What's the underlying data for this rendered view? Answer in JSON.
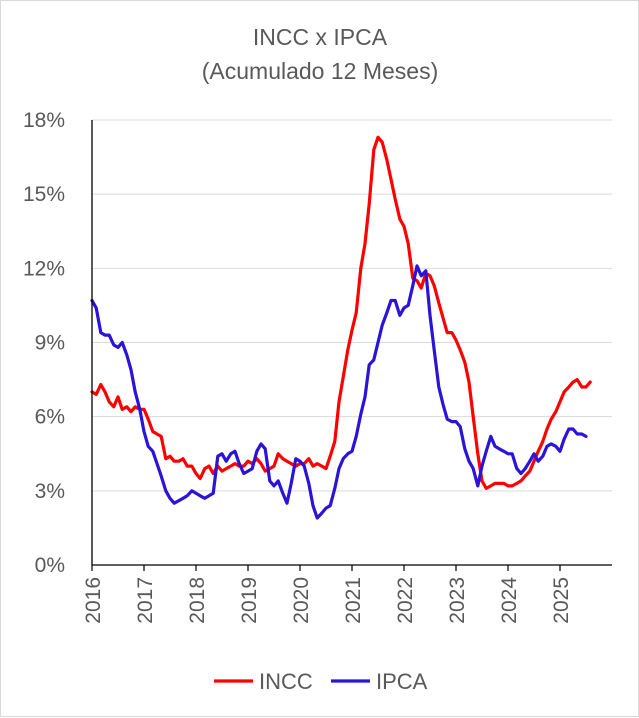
{
  "chart_data": {
    "type": "line",
    "title": "INCC x IPCA",
    "subtitle": "(Acumulado 12 Meses)",
    "xlabel": "",
    "ylabel": "",
    "x_range": [
      2016.0,
      2026.0
    ],
    "ylim": [
      0,
      18
    ],
    "y_ticks": [
      0,
      3,
      6,
      9,
      12,
      15,
      18
    ],
    "y_tick_labels": [
      "0%",
      "3%",
      "6%",
      "9%",
      "12%",
      "15%",
      "18%"
    ],
    "x_ticks": [
      2016,
      2017,
      2018,
      2019,
      2020,
      2021,
      2022,
      2023,
      2024,
      2025
    ],
    "x_tick_labels": [
      "2016",
      "2017",
      "2018",
      "2019",
      "2020",
      "2021",
      "2022",
      "2023",
      "2024",
      "2025"
    ],
    "grid": "horizontal",
    "legend_position": "bottom",
    "series": [
      {
        "name": "INCC",
        "color": "#ff0000",
        "points": [
          [
            2016.0,
            7.0
          ],
          [
            2016.08,
            6.9
          ],
          [
            2016.17,
            7.3
          ],
          [
            2016.25,
            7.0
          ],
          [
            2016.33,
            6.6
          ],
          [
            2016.42,
            6.4
          ],
          [
            2016.5,
            6.8
          ],
          [
            2016.58,
            6.3
          ],
          [
            2016.67,
            6.4
          ],
          [
            2016.75,
            6.2
          ],
          [
            2016.83,
            6.4
          ],
          [
            2016.92,
            6.3
          ],
          [
            2017.0,
            6.3
          ],
          [
            2017.08,
            5.9
          ],
          [
            2017.17,
            5.4
          ],
          [
            2017.25,
            5.3
          ],
          [
            2017.33,
            5.2
          ],
          [
            2017.42,
            4.3
          ],
          [
            2017.5,
            4.4
          ],
          [
            2017.58,
            4.2
          ],
          [
            2017.67,
            4.2
          ],
          [
            2017.75,
            4.3
          ],
          [
            2017.83,
            4.0
          ],
          [
            2017.92,
            4.0
          ],
          [
            2018.0,
            3.7
          ],
          [
            2018.08,
            3.5
          ],
          [
            2018.17,
            3.9
          ],
          [
            2018.25,
            4.0
          ],
          [
            2018.33,
            3.7
          ],
          [
            2018.42,
            4.0
          ],
          [
            2018.5,
            3.8
          ],
          [
            2018.58,
            3.9
          ],
          [
            2018.67,
            4.0
          ],
          [
            2018.75,
            4.1
          ],
          [
            2018.83,
            4.0
          ],
          [
            2018.92,
            4.0
          ],
          [
            2019.0,
            4.2
          ],
          [
            2019.08,
            4.1
          ],
          [
            2019.17,
            4.3
          ],
          [
            2019.25,
            4.1
          ],
          [
            2019.33,
            3.8
          ],
          [
            2019.42,
            3.9
          ],
          [
            2019.5,
            4.0
          ],
          [
            2019.58,
            4.5
          ],
          [
            2019.67,
            4.3
          ],
          [
            2019.75,
            4.2
          ],
          [
            2019.83,
            4.1
          ],
          [
            2019.92,
            4.0
          ],
          [
            2020.0,
            4.1
          ],
          [
            2020.08,
            4.1
          ],
          [
            2020.17,
            4.3
          ],
          [
            2020.25,
            4.0
          ],
          [
            2020.33,
            4.1
          ],
          [
            2020.42,
            4.0
          ],
          [
            2020.5,
            3.9
          ],
          [
            2020.58,
            4.4
          ],
          [
            2020.67,
            5.0
          ],
          [
            2020.75,
            6.6
          ],
          [
            2020.83,
            7.6
          ],
          [
            2020.92,
            8.7
          ],
          [
            2021.0,
            9.5
          ],
          [
            2021.08,
            10.2
          ],
          [
            2021.17,
            12.0
          ],
          [
            2021.25,
            13.0
          ],
          [
            2021.33,
            14.6
          ],
          [
            2021.42,
            16.8
          ],
          [
            2021.5,
            17.3
          ],
          [
            2021.58,
            17.1
          ],
          [
            2021.67,
            16.4
          ],
          [
            2021.75,
            15.6
          ],
          [
            2021.83,
            14.8
          ],
          [
            2021.92,
            14.0
          ],
          [
            2022.0,
            13.7
          ],
          [
            2022.08,
            13.0
          ],
          [
            2022.17,
            11.6
          ],
          [
            2022.25,
            11.5
          ],
          [
            2022.33,
            11.2
          ],
          [
            2022.42,
            11.8
          ],
          [
            2022.5,
            11.7
          ],
          [
            2022.58,
            11.3
          ],
          [
            2022.67,
            10.6
          ],
          [
            2022.75,
            10.0
          ],
          [
            2022.83,
            9.4
          ],
          [
            2022.92,
            9.4
          ],
          [
            2023.0,
            9.1
          ],
          [
            2023.08,
            8.7
          ],
          [
            2023.17,
            8.2
          ],
          [
            2023.25,
            7.4
          ],
          [
            2023.33,
            6.0
          ],
          [
            2023.42,
            4.5
          ],
          [
            2023.5,
            3.4
          ],
          [
            2023.58,
            3.1
          ],
          [
            2023.67,
            3.2
          ],
          [
            2023.75,
            3.3
          ],
          [
            2023.83,
            3.3
          ],
          [
            2023.92,
            3.3
          ],
          [
            2024.0,
            3.2
          ],
          [
            2024.08,
            3.2
          ],
          [
            2024.17,
            3.3
          ],
          [
            2024.25,
            3.4
          ],
          [
            2024.33,
            3.6
          ],
          [
            2024.42,
            3.8
          ],
          [
            2024.5,
            4.2
          ],
          [
            2024.58,
            4.6
          ],
          [
            2024.67,
            5.0
          ],
          [
            2024.75,
            5.5
          ],
          [
            2024.83,
            5.9
          ],
          [
            2024.92,
            6.2
          ],
          [
            2025.0,
            6.6
          ],
          [
            2025.08,
            7.0
          ],
          [
            2025.17,
            7.2
          ],
          [
            2025.25,
            7.4
          ],
          [
            2025.33,
            7.5
          ],
          [
            2025.42,
            7.2
          ],
          [
            2025.5,
            7.2
          ],
          [
            2025.58,
            7.4
          ]
        ]
      },
      {
        "name": "IPCA",
        "color": "#2a14d8",
        "points": [
          [
            2016.0,
            10.7
          ],
          [
            2016.08,
            10.4
          ],
          [
            2016.17,
            9.4
          ],
          [
            2016.25,
            9.3
          ],
          [
            2016.33,
            9.3
          ],
          [
            2016.42,
            8.9
          ],
          [
            2016.5,
            8.8
          ],
          [
            2016.58,
            9.0
          ],
          [
            2016.67,
            8.5
          ],
          [
            2016.75,
            7.9
          ],
          [
            2016.83,
            7.0
          ],
          [
            2016.92,
            6.3
          ],
          [
            2017.0,
            5.4
          ],
          [
            2017.08,
            4.8
          ],
          [
            2017.17,
            4.6
          ],
          [
            2017.25,
            4.1
          ],
          [
            2017.33,
            3.6
          ],
          [
            2017.42,
            3.0
          ],
          [
            2017.5,
            2.7
          ],
          [
            2017.58,
            2.5
          ],
          [
            2017.67,
            2.6
          ],
          [
            2017.75,
            2.7
          ],
          [
            2017.83,
            2.8
          ],
          [
            2017.92,
            3.0
          ],
          [
            2018.0,
            2.9
          ],
          [
            2018.08,
            2.8
          ],
          [
            2018.17,
            2.7
          ],
          [
            2018.25,
            2.8
          ],
          [
            2018.33,
            2.9
          ],
          [
            2018.42,
            4.4
          ],
          [
            2018.5,
            4.5
          ],
          [
            2018.58,
            4.2
          ],
          [
            2018.67,
            4.5
          ],
          [
            2018.75,
            4.6
          ],
          [
            2018.83,
            4.1
          ],
          [
            2018.92,
            3.7
          ],
          [
            2019.0,
            3.8
          ],
          [
            2019.08,
            3.9
          ],
          [
            2019.17,
            4.6
          ],
          [
            2019.25,
            4.9
          ],
          [
            2019.33,
            4.7
          ],
          [
            2019.42,
            3.4
          ],
          [
            2019.5,
            3.2
          ],
          [
            2019.58,
            3.4
          ],
          [
            2019.67,
            2.9
          ],
          [
            2019.75,
            2.5
          ],
          [
            2019.83,
            3.3
          ],
          [
            2019.92,
            4.3
          ],
          [
            2020.0,
            4.2
          ],
          [
            2020.08,
            4.0
          ],
          [
            2020.17,
            3.3
          ],
          [
            2020.25,
            2.4
          ],
          [
            2020.33,
            1.9
          ],
          [
            2020.42,
            2.1
          ],
          [
            2020.5,
            2.3
          ],
          [
            2020.58,
            2.4
          ],
          [
            2020.67,
            3.1
          ],
          [
            2020.75,
            3.9
          ],
          [
            2020.83,
            4.3
          ],
          [
            2020.92,
            4.5
          ],
          [
            2021.0,
            4.6
          ],
          [
            2021.08,
            5.2
          ],
          [
            2021.17,
            6.1
          ],
          [
            2021.25,
            6.8
          ],
          [
            2021.33,
            8.1
          ],
          [
            2021.42,
            8.3
          ],
          [
            2021.5,
            9.0
          ],
          [
            2021.58,
            9.7
          ],
          [
            2021.67,
            10.2
          ],
          [
            2021.75,
            10.7
          ],
          [
            2021.83,
            10.7
          ],
          [
            2021.92,
            10.1
          ],
          [
            2022.0,
            10.4
          ],
          [
            2022.08,
            10.5
          ],
          [
            2022.17,
            11.3
          ],
          [
            2022.25,
            12.1
          ],
          [
            2022.33,
            11.7
          ],
          [
            2022.42,
            11.9
          ],
          [
            2022.5,
            10.1
          ],
          [
            2022.58,
            8.7
          ],
          [
            2022.67,
            7.2
          ],
          [
            2022.75,
            6.5
          ],
          [
            2022.83,
            5.9
          ],
          [
            2022.92,
            5.8
          ],
          [
            2023.0,
            5.8
          ],
          [
            2023.08,
            5.6
          ],
          [
            2023.17,
            4.7
          ],
          [
            2023.25,
            4.2
          ],
          [
            2023.33,
            3.9
          ],
          [
            2023.42,
            3.2
          ],
          [
            2023.5,
            4.0
          ],
          [
            2023.58,
            4.6
          ],
          [
            2023.67,
            5.2
          ],
          [
            2023.75,
            4.8
          ],
          [
            2023.83,
            4.7
          ],
          [
            2023.92,
            4.6
          ],
          [
            2024.0,
            4.5
          ],
          [
            2024.08,
            4.5
          ],
          [
            2024.17,
            3.9
          ],
          [
            2024.25,
            3.7
          ],
          [
            2024.33,
            3.9
          ],
          [
            2024.42,
            4.2
          ],
          [
            2024.5,
            4.5
          ],
          [
            2024.58,
            4.2
          ],
          [
            2024.67,
            4.4
          ],
          [
            2024.75,
            4.8
          ],
          [
            2024.83,
            4.9
          ],
          [
            2024.92,
            4.8
          ],
          [
            2025.0,
            4.6
          ],
          [
            2025.08,
            5.1
          ],
          [
            2025.17,
            5.5
          ],
          [
            2025.25,
            5.5
          ],
          [
            2025.33,
            5.3
          ],
          [
            2025.42,
            5.3
          ],
          [
            2025.5,
            5.2
          ]
        ]
      }
    ]
  }
}
